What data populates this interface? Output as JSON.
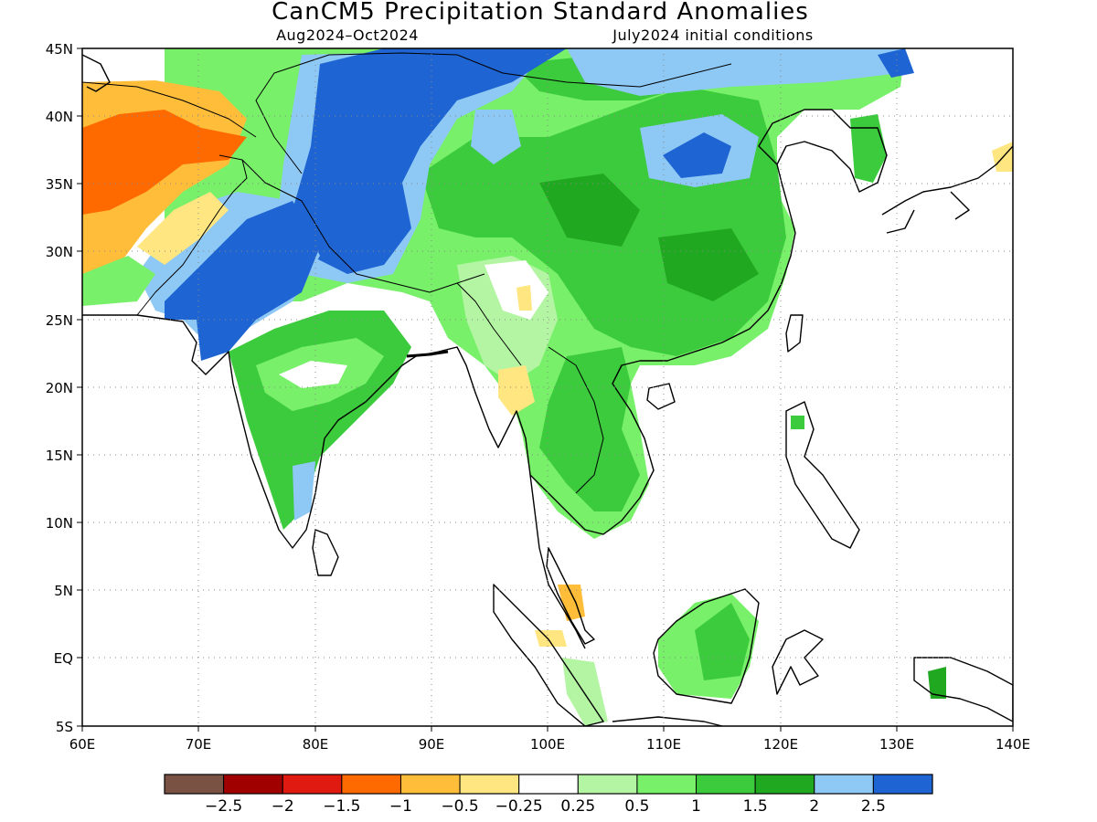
{
  "title": "CanCM5 Precipitation Standard Anomalies",
  "subtitle_left": "Aug2024–Oct2024",
  "subtitle_right": "July2024 initial conditions",
  "map": {
    "lon_range": [
      60,
      140
    ],
    "lat_range": [
      -5,
      45
    ],
    "x_ticks": [
      "60E",
      "70E",
      "80E",
      "90E",
      "100E",
      "110E",
      "120E",
      "130E",
      "140E"
    ],
    "y_ticks": [
      "45N",
      "40N",
      "35N",
      "30N",
      "25N",
      "20N",
      "15N",
      "10N",
      "5N",
      "EQ",
      "5S"
    ],
    "grid": "dotted"
  },
  "legend": {
    "colors": [
      "#7a5243",
      "#a00000",
      "#e01a10",
      "#ff6a00",
      "#ffbd3a",
      "#ffe680",
      "#ffffff",
      "#b4f5a4",
      "#78f06a",
      "#3ccb3c",
      "#21a821",
      "#8ec8f5",
      "#1e64d2"
    ],
    "labels": [
      "−2.5",
      "−2",
      "−1.5",
      "−1",
      "−0.5",
      "−0.25",
      "0.25",
      "0.5",
      "1",
      "1.5",
      "2",
      "2.5"
    ]
  }
}
